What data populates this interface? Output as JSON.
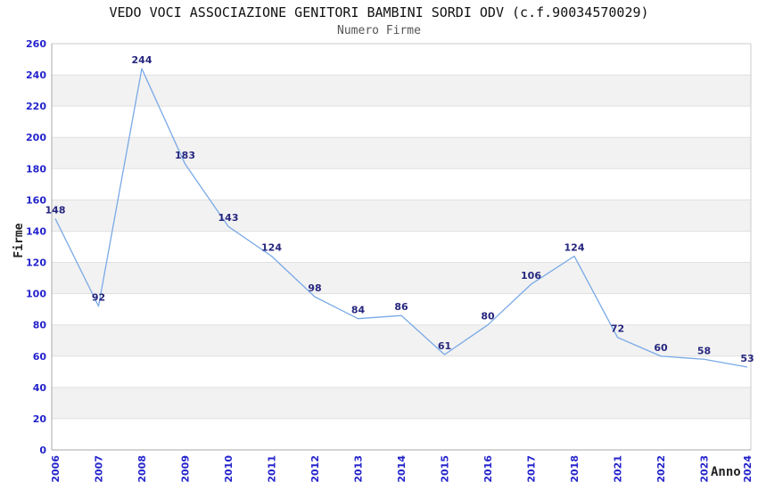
{
  "page": {
    "title": "VEDO VOCI ASSOCIAZIONE GENITORI BAMBINI SORDI ODV (c.f.90034570029)",
    "subtitle": "Numero Firme"
  },
  "chart_data": {
    "type": "line",
    "title": "VEDO VOCI ASSOCIAZIONE GENITORI BAMBINI SORDI ODV (c.f.90034570029)",
    "subtitle": "Numero Firme",
    "xlabel": "Anno",
    "ylabel": "Firme",
    "categories": [
      "2006",
      "2007",
      "2008",
      "2009",
      "2010",
      "2011",
      "2012",
      "2013",
      "2014",
      "2015",
      "2016",
      "2017",
      "2018",
      "2021",
      "2022",
      "2023",
      "2024"
    ],
    "values": [
      148,
      92,
      244,
      183,
      143,
      124,
      98,
      84,
      86,
      61,
      80,
      106,
      124,
      72,
      60,
      58,
      53
    ],
    "ylim": [
      0,
      260
    ],
    "ytick_step": 20,
    "grid": "horizontal",
    "alternating_bands": true,
    "legend_position": "none",
    "point_markers": false,
    "colors": {
      "line": "#79a9e6",
      "tick_labels": "#2323cc",
      "data_labels": "#26267f",
      "band": "#f2f2f2",
      "gridline": "#e0e0e0",
      "plot_border": "#cccccc",
      "axis_line": "#aaaaaa",
      "title": "#111111",
      "subtitle": "#555555",
      "axis_titles": "#222222"
    }
  }
}
